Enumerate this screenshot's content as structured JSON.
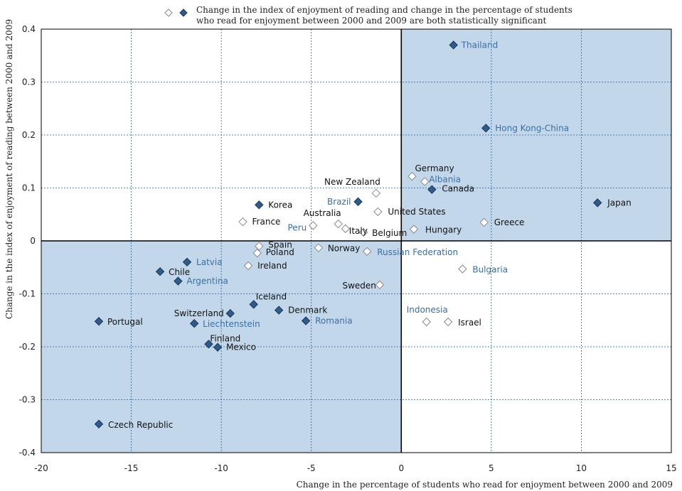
{
  "chart_data": {
    "type": "scatter",
    "legend": {
      "line1": "Change in the index of enjoyment of reading and change in the percentage of students",
      "line2": "who read for enjoyment between 2000 and 2009 are both statistically significant",
      "marker_not_significant": "open-diamond",
      "marker_significant": "filled-diamond"
    },
    "xlabel": "Change in the percentage of students who read for enjoyment between 2000 and 2009",
    "ylabel": "Change in the index of enjoyment of reading between 2000 and 2009",
    "xlim": [
      -20,
      15
    ],
    "ylim": [
      -0.4,
      0.4
    ],
    "xticks": [
      -20,
      -15,
      -10,
      -5,
      0,
      5,
      10,
      15
    ],
    "xtick_labels": [
      "-20",
      "-15",
      "-10",
      "-5",
      "0",
      "5",
      "10",
      "15"
    ],
    "yticks": [
      0.4,
      0.3,
      0.2,
      0.1,
      0,
      -0.1,
      -0.2,
      -0.3,
      -0.4
    ],
    "ytick_labels": [
      "0.4",
      "0.3",
      "0.2",
      "0.1",
      "0",
      "-0.1",
      "-0.2",
      "-0.3",
      "-0.4"
    ],
    "shaded_quadrants": [
      "top-right",
      "bottom-left"
    ],
    "colors": {
      "shade": "#c2d8ea",
      "filled_marker": "#2e5c8e",
      "filled_marker_stroke": "#1c3554",
      "open_marker_fill": "#ffffff",
      "open_marker_stroke": "#8a8a8a",
      "oecd_label": "#111111",
      "partner_label": "#3a6ea5",
      "grid": "#2f5fa0",
      "zero_axis": "#000000"
    },
    "points": [
      {
        "name": "Thailand",
        "x": 2.9,
        "y": 0.37,
        "significant": true,
        "partner": true
      },
      {
        "name": "Hong Kong-China",
        "x": 4.7,
        "y": 0.213,
        "significant": true,
        "partner": true
      },
      {
        "name": "Germany",
        "x": 0.6,
        "y": 0.122,
        "significant": false,
        "partner": false
      },
      {
        "name": "Albania",
        "x": 1.3,
        "y": 0.112,
        "significant": false,
        "partner": true
      },
      {
        "name": "Canada",
        "x": 1.7,
        "y": 0.097,
        "significant": true,
        "partner": false
      },
      {
        "name": "New Zealand",
        "x": -1.4,
        "y": 0.09,
        "significant": false,
        "partner": false
      },
      {
        "name": "Japan",
        "x": 10.9,
        "y": 0.072,
        "significant": true,
        "partner": false
      },
      {
        "name": "Brazil",
        "x": -2.4,
        "y": 0.074,
        "significant": true,
        "partner": true
      },
      {
        "name": "Korea",
        "x": -7.9,
        "y": 0.068,
        "significant": true,
        "partner": false
      },
      {
        "name": "United States",
        "x": -1.3,
        "y": 0.055,
        "significant": false,
        "partner": false
      },
      {
        "name": "Australia",
        "x": -3.5,
        "y": 0.032,
        "significant": false,
        "partner": false
      },
      {
        "name": "France",
        "x": -8.8,
        "y": 0.036,
        "significant": false,
        "partner": false
      },
      {
        "name": "Greece",
        "x": 4.6,
        "y": 0.035,
        "significant": false,
        "partner": false
      },
      {
        "name": "Peru",
        "x": -4.9,
        "y": 0.029,
        "significant": false,
        "partner": true
      },
      {
        "name": "Italy",
        "x": -3.1,
        "y": 0.023,
        "significant": false,
        "partner": false
      },
      {
        "name": "Hungary",
        "x": 0.7,
        "y": 0.022,
        "significant": false,
        "partner": false
      },
      {
        "name": "Belgium",
        "x": -2.1,
        "y": 0.016,
        "significant": false,
        "partner": false
      },
      {
        "name": "Spain",
        "x": -7.9,
        "y": -0.01,
        "significant": false,
        "partner": false
      },
      {
        "name": "Norway",
        "x": -4.6,
        "y": -0.013,
        "significant": false,
        "partner": false
      },
      {
        "name": "Russian Federation",
        "x": -1.9,
        "y": -0.02,
        "significant": false,
        "partner": true
      },
      {
        "name": "Poland",
        "x": -8.0,
        "y": -0.023,
        "significant": false,
        "partner": false
      },
      {
        "name": "Latvia",
        "x": -11.9,
        "y": -0.04,
        "significant": true,
        "partner": true
      },
      {
        "name": "Ireland",
        "x": -8.5,
        "y": -0.047,
        "significant": false,
        "partner": false
      },
      {
        "name": "Bulgaria",
        "x": 3.4,
        "y": -0.053,
        "significant": false,
        "partner": true
      },
      {
        "name": "Chile",
        "x": -13.4,
        "y": -0.058,
        "significant": true,
        "partner": false
      },
      {
        "name": "Argentina",
        "x": -12.4,
        "y": -0.076,
        "significant": true,
        "partner": true
      },
      {
        "name": "Sweden",
        "x": -1.2,
        "y": -0.083,
        "significant": false,
        "partner": false
      },
      {
        "name": "Iceland",
        "x": -8.2,
        "y": -0.12,
        "significant": true,
        "partner": false
      },
      {
        "name": "Denmark",
        "x": -6.8,
        "y": -0.131,
        "significant": true,
        "partner": false
      },
      {
        "name": "Switzerland",
        "x": -9.5,
        "y": -0.137,
        "significant": true,
        "partner": false
      },
      {
        "name": "Romania",
        "x": -5.3,
        "y": -0.151,
        "significant": true,
        "partner": true
      },
      {
        "name": "Portugal",
        "x": -16.8,
        "y": -0.152,
        "significant": true,
        "partner": false
      },
      {
        "name": "Liechtenstein",
        "x": -11.5,
        "y": -0.156,
        "significant": true,
        "partner": true
      },
      {
        "name": "Indonesia",
        "x": 1.4,
        "y": -0.153,
        "significant": false,
        "partner": true
      },
      {
        "name": "Israel",
        "x": 2.6,
        "y": -0.153,
        "significant": false,
        "partner": false
      },
      {
        "name": "Finland",
        "x": -10.7,
        "y": -0.195,
        "significant": true,
        "partner": false
      },
      {
        "name": "Mexico",
        "x": -10.2,
        "y": -0.201,
        "significant": true,
        "partner": false
      },
      {
        "name": "Czech Republic",
        "x": -16.8,
        "y": -0.346,
        "significant": true,
        "partner": false
      }
    ]
  }
}
